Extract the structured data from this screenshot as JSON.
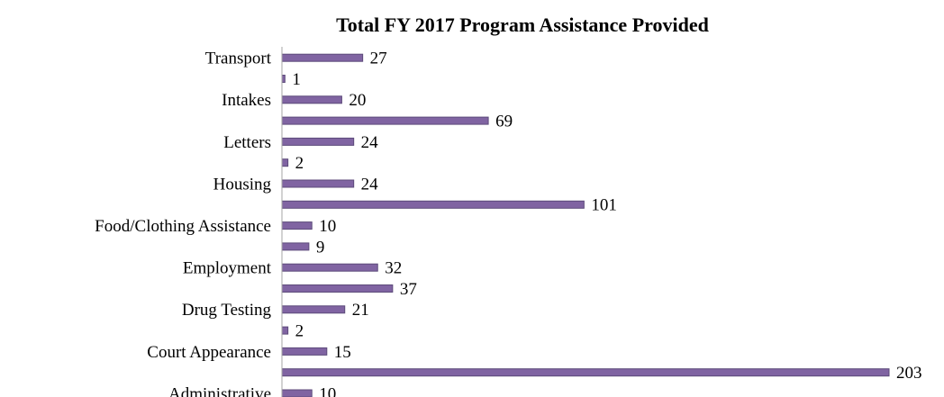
{
  "chart_data": {
    "type": "bar",
    "orientation": "horizontal",
    "title": "Total FY 2017 Program Assistance Provided",
    "categories": [
      "Administrative",
      null,
      "Court Appearance",
      null,
      "Drug Testing",
      null,
      "Employment",
      null,
      "Food/Clothing Assistance",
      null,
      "Housing",
      null,
      "Letters",
      null,
      "Intakes",
      null,
      "Transport"
    ],
    "values": [
      10,
      203,
      15,
      2,
      21,
      37,
      32,
      9,
      10,
      101,
      24,
      2,
      24,
      69,
      20,
      1,
      27
    ],
    "color": "#8064a2"
  }
}
